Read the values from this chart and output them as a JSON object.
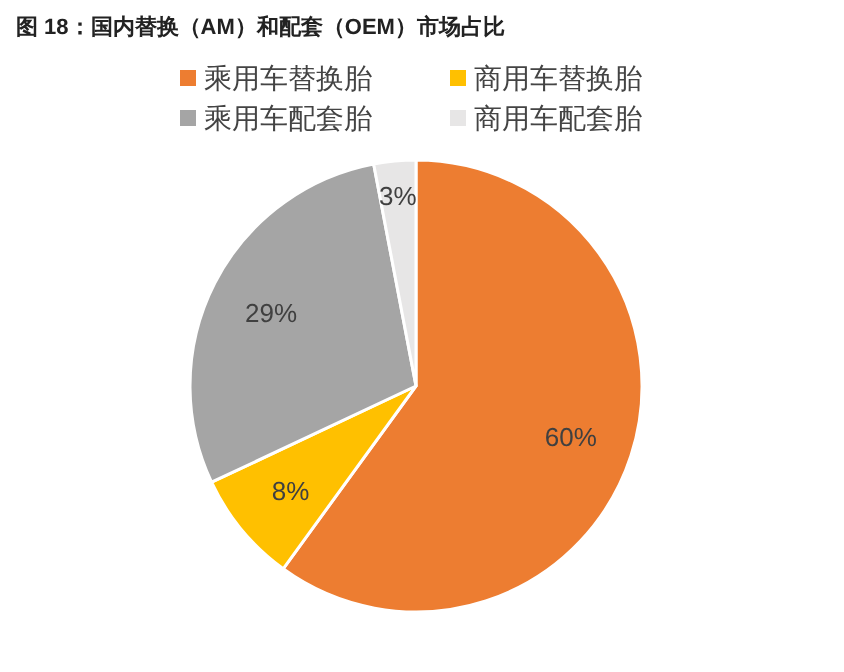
{
  "chart_data": {
    "type": "pie",
    "title": "图 18：国内替换（AM）和配套（OEM）市场占比",
    "categories": [
      "乘用车替换胎",
      "商用车替换胎",
      "乘用车配套胎",
      "商用车配套胎"
    ],
    "values": [
      60,
      8,
      29,
      3
    ],
    "colors": [
      "#ed7d31",
      "#ffc000",
      "#a5a5a5",
      "#e7e6e6"
    ],
    "value_labels": [
      "60%",
      "8%",
      "29%",
      "3%"
    ],
    "legend": "top"
  }
}
